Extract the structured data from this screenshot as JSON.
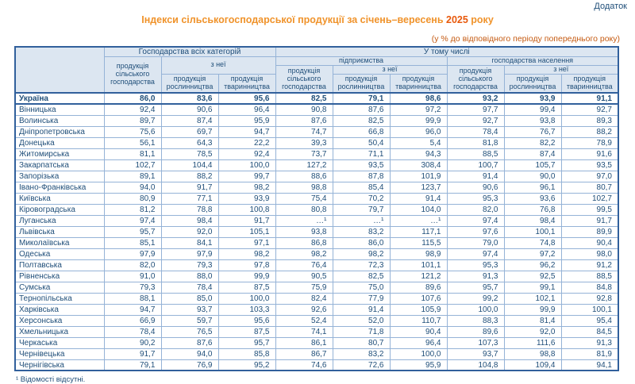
{
  "page": {
    "annotation": "Додаток",
    "title": {
      "prefix": "Індекси сільськогосподарської продукції за січень–вересень ",
      "year": "2025",
      "suffix": " року"
    },
    "subtitle": "(у % до відповідного періоду попереднього року)",
    "footnote": "¹ Відомості відсутні."
  },
  "colors": {
    "title_orange": "#F0932B",
    "year_orange": "#E8590C",
    "subtitle_orange": "#C55A11",
    "text_navy": "#1F4E79",
    "header_bg": "#DCE6F1",
    "grid_light": "#95B3D7",
    "grid_dark": "#31609C"
  },
  "table": {
    "header": {
      "corner": "",
      "group_all_categories": "Господарства всіх категорій",
      "group_including": "У тому числі",
      "enterprises": "підприємства",
      "households": "господарства населення",
      "agri_output": "продукція сільського господарства",
      "of_which": "з неї",
      "crop_output": "продукція рослинництва",
      "livestock_output": "продукція тваринництва"
    },
    "rows": [
      {
        "region": "Україна",
        "bold": true,
        "values": [
          "86,0",
          "83,6",
          "95,6",
          "82,5",
          "79,1",
          "98,6",
          "93,2",
          "93,9",
          "91,1"
        ]
      },
      {
        "region": "Вінницька",
        "bold": false,
        "values": [
          "92,4",
          "90,6",
          "96,4",
          "90,8",
          "87,6",
          "97,2",
          "97,7",
          "99,4",
          "92,7"
        ]
      },
      {
        "region": "Волинська",
        "bold": false,
        "values": [
          "89,7",
          "87,4",
          "95,9",
          "87,6",
          "82,5",
          "99,9",
          "92,7",
          "93,8",
          "89,3"
        ]
      },
      {
        "region": "Дніпропетровська",
        "bold": false,
        "values": [
          "75,6",
          "69,7",
          "94,7",
          "74,7",
          "66,8",
          "96,0",
          "78,4",
          "76,7",
          "88,2"
        ]
      },
      {
        "region": "Донецька",
        "bold": false,
        "values": [
          "56,1",
          "64,3",
          "22,2",
          "39,3",
          "50,4",
          "5,4",
          "81,8",
          "82,2",
          "78,9"
        ]
      },
      {
        "region": "Житомирська",
        "bold": false,
        "values": [
          "81,1",
          "78,5",
          "92,4",
          "73,7",
          "71,1",
          "94,3",
          "88,5",
          "87,4",
          "91,6"
        ]
      },
      {
        "region": "Закарпатська",
        "bold": false,
        "values": [
          "102,7",
          "104,4",
          "100,0",
          "127,2",
          "93,5",
          "308,4",
          "100,7",
          "105,7",
          "93,5"
        ]
      },
      {
        "region": "Запорізька",
        "bold": false,
        "values": [
          "89,1",
          "88,2",
          "99,7",
          "88,6",
          "87,8",
          "101,9",
          "91,4",
          "90,0",
          "97,0"
        ]
      },
      {
        "region": "Івано-Франківська",
        "bold": false,
        "values": [
          "94,0",
          "91,7",
          "98,2",
          "98,8",
          "85,4",
          "123,7",
          "90,6",
          "96,1",
          "80,7"
        ]
      },
      {
        "region": "Київська",
        "bold": false,
        "values": [
          "80,9",
          "77,1",
          "93,9",
          "75,4",
          "70,2",
          "91,4",
          "95,3",
          "93,6",
          "102,7"
        ]
      },
      {
        "region": "Кіровоградська",
        "bold": false,
        "values": [
          "81,2",
          "78,8",
          "100,8",
          "80,8",
          "79,7",
          "104,0",
          "82,0",
          "76,8",
          "99,5"
        ]
      },
      {
        "region": "Луганська",
        "bold": false,
        "values": [
          "97,4",
          "98,4",
          "91,7",
          "…¹",
          "…¹",
          "…¹",
          "97,4",
          "98,4",
          "91,7"
        ]
      },
      {
        "region": "Львівська",
        "bold": false,
        "values": [
          "95,7",
          "92,0",
          "105,1",
          "93,8",
          "83,2",
          "117,1",
          "97,6",
          "100,1",
          "89,9"
        ]
      },
      {
        "region": "Миколаївська",
        "bold": false,
        "values": [
          "85,1",
          "84,1",
          "97,1",
          "86,8",
          "86,0",
          "115,5",
          "79,0",
          "74,8",
          "90,4"
        ]
      },
      {
        "region": "Одеська",
        "bold": false,
        "values": [
          "97,9",
          "97,9",
          "98,2",
          "98,2",
          "98,2",
          "98,9",
          "97,4",
          "97,2",
          "98,0"
        ]
      },
      {
        "region": "Полтавська",
        "bold": false,
        "values": [
          "82,0",
          "79,3",
          "97,8",
          "76,4",
          "72,3",
          "101,1",
          "95,3",
          "96,2",
          "91,2"
        ]
      },
      {
        "region": "Рівненська",
        "bold": false,
        "values": [
          "91,0",
          "88,0",
          "99,9",
          "90,5",
          "82,5",
          "121,2",
          "91,3",
          "92,5",
          "88,5"
        ]
      },
      {
        "region": "Сумська",
        "bold": false,
        "values": [
          "79,3",
          "78,4",
          "87,5",
          "75,9",
          "75,0",
          "89,6",
          "95,7",
          "99,1",
          "84,8"
        ]
      },
      {
        "region": "Тернопільська",
        "bold": false,
        "values": [
          "88,1",
          "85,0",
          "100,0",
          "82,4",
          "77,9",
          "107,6",
          "99,2",
          "102,1",
          "92,8"
        ]
      },
      {
        "region": "Харківська",
        "bold": false,
        "values": [
          "94,7",
          "93,7",
          "103,3",
          "92,6",
          "91,4",
          "105,9",
          "100,0",
          "99,9",
          "100,1"
        ]
      },
      {
        "region": "Херсонська",
        "bold": false,
        "values": [
          "66,9",
          "59,7",
          "95,6",
          "52,4",
          "52,0",
          "110,7",
          "88,3",
          "81,4",
          "95,4"
        ]
      },
      {
        "region": "Хмельницька",
        "bold": false,
        "values": [
          "78,4",
          "76,5",
          "87,5",
          "74,1",
          "71,8",
          "90,4",
          "89,6",
          "92,0",
          "84,5"
        ]
      },
      {
        "region": "Черкаська",
        "bold": false,
        "values": [
          "90,2",
          "87,6",
          "95,7",
          "86,1",
          "80,7",
          "96,4",
          "107,3",
          "111,6",
          "91,3"
        ]
      },
      {
        "region": "Чернівецька",
        "bold": false,
        "values": [
          "91,7",
          "94,0",
          "85,8",
          "86,7",
          "83,2",
          "100,0",
          "93,7",
          "98,8",
          "81,9"
        ]
      },
      {
        "region": "Чернігівська",
        "bold": false,
        "values": [
          "79,1",
          "76,9",
          "95,2",
          "74,6",
          "72,6",
          "95,9",
          "104,8",
          "109,4",
          "94,1"
        ]
      }
    ]
  }
}
